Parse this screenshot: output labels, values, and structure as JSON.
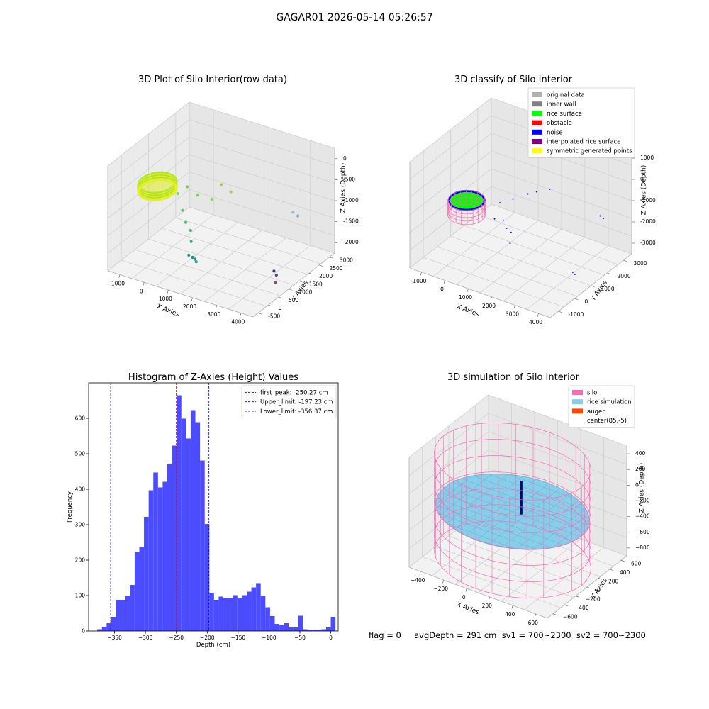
{
  "figure": {
    "suptitle": "GAGAR01 2026-05-14 05:26:57",
    "status_text": "flag = 0     avgDepth = 291 cm  sv1 = 700~2300  sv2 = 700~2300"
  },
  "chart_data": [
    {
      "id": "raw3d",
      "type": "scatter",
      "title": "3D Plot of Silo Interior(row data)",
      "xlabel": "X Axies",
      "ylabel": "Y Axies",
      "zlabel": "Z Axies (Depth)",
      "xticks": [
        "-1000",
        "0",
        "1000",
        "2000",
        "3000",
        "4000"
      ],
      "yticks": [
        "-500",
        "0",
        "500",
        "1000",
        "1500",
        "2000",
        "2500",
        "3000"
      ],
      "zticks": [
        "0",
        "-500",
        "-1000",
        "-1500",
        "-2000"
      ],
      "xlim": [
        -1200,
        4200
      ],
      "ylim": [
        -600,
        3300
      ],
      "zlim": [
        -2300,
        100
      ],
      "grid": true,
      "ring": {
        "center": [
          100,
          100
        ],
        "radius": 550,
        "depth_top": -300,
        "depth_bottom": -450,
        "colors": [
          "#c6ea2a",
          "#9ee03a",
          "#e5ef26"
        ]
      },
      "points": [
        {
          "x": 700,
          "y": 300,
          "z": -500,
          "c": "#7ad151"
        },
        {
          "x": 900,
          "y": 500,
          "z": -380,
          "c": "#7ad151"
        },
        {
          "x": 1200,
          "y": 600,
          "z": -550,
          "c": "#86d549"
        },
        {
          "x": 1500,
          "y": 900,
          "z": -700,
          "c": "#86d549"
        },
        {
          "x": 1700,
          "y": 1100,
          "z": -400,
          "c": "#9bd93c"
        },
        {
          "x": 1900,
          "y": 1300,
          "z": -600,
          "c": "#9bd93c"
        },
        {
          "x": 800,
          "y": 400,
          "z": -900,
          "c": "#5ec962"
        },
        {
          "x": 1000,
          "y": 300,
          "z": -1100,
          "c": "#4ac16d"
        },
        {
          "x": 1100,
          "y": 400,
          "z": -1300,
          "c": "#3bbb75"
        },
        {
          "x": 1200,
          "y": 300,
          "z": -1500,
          "c": "#2db27d"
        },
        {
          "x": 1150,
          "y": 250,
          "z": -1800,
          "c": "#21918c"
        },
        {
          "x": 1250,
          "y": 300,
          "z": -1850,
          "c": "#21918c"
        },
        {
          "x": 1300,
          "y": 350,
          "z": -1900,
          "c": "#1f9e89"
        },
        {
          "x": 1350,
          "y": 350,
          "z": -1950,
          "c": "#25ab82"
        },
        {
          "x": 3200,
          "y": 2600,
          "z": -1300,
          "c": "#a0b8d0"
        },
        {
          "x": 3300,
          "y": 2700,
          "z": -1400,
          "c": "#8aa3c2"
        },
        {
          "x": 3500,
          "y": 1300,
          "z": -2100,
          "c": "#46327e"
        },
        {
          "x": 3550,
          "y": 1350,
          "z": -2200,
          "c": "#3e4989"
        },
        {
          "x": 3550,
          "y": 1300,
          "z": -2350,
          "c": "#8a4a6a"
        }
      ]
    },
    {
      "id": "classify3d",
      "type": "scatter",
      "title": "3D classify of Silo Interior",
      "xlabel": "X Axies",
      "ylabel": "Y Axies",
      "zlabel": "Z Axies (Depth)",
      "xticks": [
        "-1000",
        "0",
        "1000",
        "2000",
        "3000",
        "4000"
      ],
      "yticks": [
        "-1000",
        "0",
        "1000",
        "2000",
        "3000"
      ],
      "zticks": [
        "1000",
        "0",
        "-1000",
        "-2000",
        "-3000"
      ],
      "xlim": [
        -1200,
        4200
      ],
      "ylim": [
        -1200,
        3400
      ],
      "zlim": [
        -3300,
        1200
      ],
      "grid": true,
      "legend": {
        "position": "top-right",
        "items": [
          {
            "label": "original data",
            "color": "#b0b0b0"
          },
          {
            "label": "inner wall",
            "color": "#808080"
          },
          {
            "label": "rice surface",
            "color": "#00ff00"
          },
          {
            "label": "obstacle",
            "color": "#ff0000"
          },
          {
            "label": "noise",
            "color": "#0000ff"
          },
          {
            "label": "interpolated rice surface",
            "color": "#800080"
          },
          {
            "label": "symmetric generated points",
            "color": "#ffff00"
          }
        ]
      },
      "silo": {
        "center": [
          100,
          100
        ],
        "radius": 600,
        "z_top": -700,
        "z_bottom": -1300,
        "wire_color": "#ff69b4",
        "rim_color": "#0000ff",
        "surface_color": "#00ff00"
      },
      "noise_points": [
        {
          "x": 900,
          "y": 800,
          "z": -900
        },
        {
          "x": 1200,
          "y": 1100,
          "z": -800
        },
        {
          "x": 1500,
          "y": 1500,
          "z": -700
        },
        {
          "x": 1700,
          "y": 1700,
          "z": -650
        },
        {
          "x": 2000,
          "y": 2000,
          "z": -600
        },
        {
          "x": 900,
          "y": 500,
          "z": -1400
        },
        {
          "x": 1100,
          "y": 700,
          "z": -1500
        },
        {
          "x": 1300,
          "y": 600,
          "z": -1700
        },
        {
          "x": 1400,
          "y": 700,
          "z": -1900
        },
        {
          "x": 1500,
          "y": 500,
          "z": -2200
        },
        {
          "x": 3600,
          "y": 2500,
          "z": -1400
        },
        {
          "x": 3650,
          "y": 2600,
          "z": -1550
        },
        {
          "x": 3500,
          "y": 1100,
          "z": -3000
        },
        {
          "x": 3550,
          "y": 1150,
          "z": -3100
        }
      ]
    },
    {
      "id": "histogram",
      "type": "bar",
      "title": "Histogram of Z-Axies (Height) Values",
      "xlabel": "Depth (cm)",
      "ylabel": "Frequency",
      "xlim": [
        -392,
        12
      ],
      "ylim": [
        0,
        700
      ],
      "xticks": [
        -350,
        -300,
        -250,
        -200,
        -150,
        -100,
        -50,
        0
      ],
      "xtick_labels": [
        "−350",
        "−300",
        "−250",
        "−200",
        "−150",
        "−100",
        "−50",
        "0"
      ],
      "yticks": [
        0,
        100,
        200,
        300,
        400,
        500,
        600
      ],
      "bar_color": "#4b4bff",
      "bin_start": -378,
      "bin_width": 7.56,
      "values": [
        5,
        12,
        22,
        40,
        88,
        88,
        100,
        130,
        222,
        237,
        322,
        397,
        447,
        405,
        421,
        470,
        523,
        665,
        599,
        543,
        623,
        589,
        481,
        302,
        108,
        88,
        97,
        93,
        93,
        101,
        93,
        101,
        111,
        123,
        135,
        99,
        67,
        42,
        20,
        17,
        22,
        10,
        10,
        43,
        5,
        3,
        4,
        4,
        5,
        10,
        40
      ],
      "legend": {
        "position": "top-right",
        "items": [
          {
            "label": "first_peak: -250.27 cm",
            "color": "#ff0000",
            "value": -250.27
          },
          {
            "label": "Upper_limit: -197.23 cm",
            "color": "#0000ff",
            "value": -197.23
          },
          {
            "label": "Lower_limit: -356.37 cm",
            "color": "#0000ff",
            "value": -356.37
          }
        ]
      }
    },
    {
      "id": "simulation3d",
      "type": "surface",
      "title": "3D simulation of Silo Interior",
      "xlabel": "X Axies",
      "ylabel": "Y Axies",
      "zlabel": "Z Axies (Depth)",
      "xticks": [
        "−400",
        "−200",
        "0",
        "200",
        "400",
        "600"
      ],
      "yticks": [
        "−600",
        "−400",
        "−200",
        "0",
        "200",
        "400",
        "600"
      ],
      "zticks": [
        "400",
        "200",
        "0",
        "−200",
        "−400",
        "−600",
        "−800"
      ],
      "xlim": [
        -600,
        700
      ],
      "ylim": [
        -700,
        700
      ],
      "zlim": [
        -900,
        500
      ],
      "grid": true,
      "legend": {
        "position": "top-right",
        "items": [
          {
            "label": "silo",
            "color": "#ff69b4"
          },
          {
            "label": "rice simulation",
            "color": "#87ceeb"
          },
          {
            "label": "auger",
            "color": "#ff4500"
          },
          {
            "label": "center(85,-5)",
            "color": "#ffffff"
          }
        ]
      },
      "silo": {
        "radius": 650,
        "z_top": 350,
        "z_bottom": -900,
        "color": "#ff69b4"
      },
      "rice": {
        "z": -291,
        "color": "#87ceeb",
        "mesh_color": "#3a7d9a"
      },
      "auger": {
        "x": 85,
        "y": -5,
        "color": "#000080"
      }
    }
  ]
}
